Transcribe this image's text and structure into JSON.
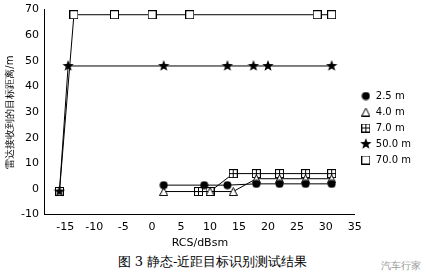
{
  "chart_data": {
    "type": "scatter",
    "x_label": "RCS/dBsm",
    "y_label": "雷达接收到的目标距离/m",
    "caption": "图 3  静态-近距目标识别测试结果",
    "watermark": "汽车行家",
    "xlim": [
      -18.5,
      35
    ],
    "xticks": [
      -15,
      -10,
      -5,
      0,
      5,
      10,
      15,
      20,
      25,
      30,
      35
    ],
    "ylim": [
      -10,
      70
    ],
    "yticks": [
      -10,
      0,
      10,
      20,
      30,
      40,
      50,
      60,
      70
    ],
    "grid": false,
    "legend": "right",
    "series": [
      {
        "name": "2.5 m",
        "color": "#000000",
        "marker": "circle",
        "line_style": "solid",
        "x": [
          2,
          9,
          13,
          18,
          22,
          26.5,
          31
        ],
        "values": [
          1.5,
          1.5,
          1.5,
          2,
          2,
          2,
          2
        ]
      },
      {
        "name": "4.0 m",
        "color": "#000000",
        "marker": "triangle",
        "line_style": "solid",
        "x": [
          2,
          10,
          14,
          18,
          22,
          26.5,
          31
        ],
        "values": [
          -1,
          -1,
          -1,
          4,
          4,
          4,
          4
        ]
      },
      {
        "name": "7.0 m",
        "color": "#000000",
        "marker": "square_plus",
        "line_style": "solid",
        "x": [
          8,
          10,
          14,
          18,
          22,
          26.5,
          31
        ],
        "values": [
          -1,
          -1,
          6,
          6,
          6,
          6,
          6
        ]
      },
      {
        "name": "50.0 m",
        "color": "#000000",
        "marker": "star",
        "line_style": "solid",
        "x": [
          -16,
          -14.5,
          2,
          13,
          17.5,
          20,
          31
        ],
        "values": [
          -1,
          48,
          48,
          48,
          48,
          48,
          48
        ]
      },
      {
        "name": "70.0 m",
        "color": "#000000",
        "marker": "square",
        "line_style": "solid",
        "x": [
          -16,
          -13.5,
          -6.5,
          0,
          6.5,
          28.5,
          31
        ],
        "values": [
          -1,
          68,
          68,
          68,
          68,
          68,
          68
        ]
      }
    ]
  }
}
